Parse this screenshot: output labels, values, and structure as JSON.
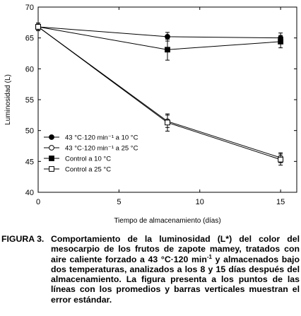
{
  "chart_data": {
    "type": "line",
    "xlabel": "Tiempo de almacenamiento (días)",
    "ylabel": "Luminosidad (L)",
    "xlim": [
      0,
      16
    ],
    "ylim": [
      40,
      70
    ],
    "xticks": [
      0,
      5,
      10,
      15
    ],
    "yticks": [
      40,
      45,
      50,
      55,
      60,
      65,
      70
    ],
    "grid": false,
    "legend_position": "lower-left",
    "x": [
      0,
      8,
      15
    ],
    "series": [
      {
        "name": "43 °C·120 min⁻¹ a 10 °C",
        "marker": "circle-filled",
        "values": [
          66.8,
          65.2,
          65.0
        ],
        "errors": [
          0.6,
          0.7,
          0.8
        ]
      },
      {
        "name": "43 °C·120 min⁻¹ a 25 °C",
        "marker": "circle-open",
        "values": [
          66.8,
          51.5,
          45.6
        ],
        "errors": [
          0.6,
          1.0,
          0.8
        ]
      },
      {
        "name": "Control a 10 °C",
        "marker": "square-filled",
        "values": [
          66.8,
          63.1,
          64.4
        ],
        "errors": [
          0.6,
          1.7,
          1.0
        ]
      },
      {
        "name": "Control a 25 °C",
        "marker": "square-open",
        "values": [
          66.8,
          51.3,
          45.3
        ],
        "errors": [
          0.6,
          1.4,
          0.9
        ]
      }
    ]
  },
  "caption": {
    "label": "FIGURA 3.",
    "text_before_sup": "Comportamiento de la luminosidad (L*) del color del mesocarpio de los frutos de zapote mamey, tratados con aire caliente forzado a 43 °C·120 min",
    "sup": "-1",
    "text_after_sup": " y almacenados bajo dos temperaturas, analizados a los 8 y 15 días después del almacenamiento. La figura presenta a los puntos de las líneas con los promedios y barras verticales muestran el error estándar."
  }
}
